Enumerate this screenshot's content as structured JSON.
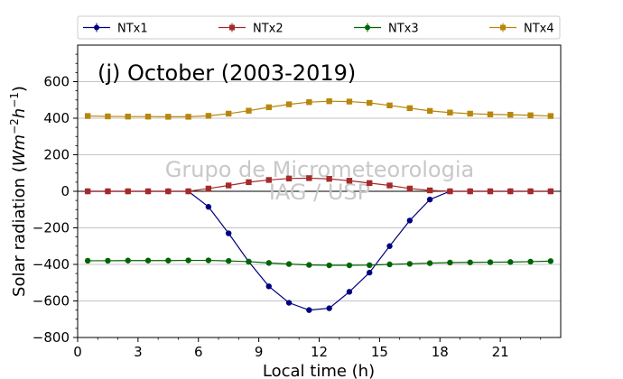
{
  "chart_data": {
    "type": "line",
    "title": "(j) October (2003-2019)",
    "xlabel": "Local time (h)",
    "ylabel_main": "Solar radiation (",
    "ylabel_unit_w": "Wm",
    "ylabel_exp1": "−2",
    "ylabel_unit_h": "h",
    "ylabel_exp2": "−1",
    "ylabel_close": ")",
    "watermark_line1": "Grupo de Micrometeorologia",
    "watermark_line2": "IAG / USP",
    "xlim": [
      0,
      24
    ],
    "ylim": [
      -800,
      800
    ],
    "xticks": [
      0,
      3,
      6,
      9,
      12,
      15,
      18,
      21
    ],
    "yticks": [
      -800,
      -600,
      -400,
      -200,
      0,
      200,
      400,
      600
    ],
    "grid": "horizontal",
    "legend_position": "top",
    "x": [
      0.5,
      1.5,
      2.5,
      3.5,
      4.5,
      5.5,
      6.5,
      7.5,
      8.5,
      9.5,
      10.5,
      11.5,
      12.5,
      13.5,
      14.5,
      15.5,
      16.5,
      17.5,
      18.5,
      19.5,
      20.5,
      21.5,
      22.5,
      23.5
    ],
    "series": [
      {
        "name": "NTx1",
        "color": "#000080",
        "marker": "circle",
        "values": [
          0,
          0,
          0,
          0,
          0,
          0,
          -85,
          -230,
          -385,
          -520,
          -610,
          -650,
          -640,
          -550,
          -445,
          -300,
          -160,
          -45,
          0,
          0,
          0,
          0,
          0,
          0
        ]
      },
      {
        "name": "NTx2",
        "color": "#a52a2a",
        "marker": "square",
        "values": [
          0,
          0,
          0,
          0,
          0,
          0,
          15,
          32,
          50,
          62,
          70,
          72,
          68,
          58,
          45,
          32,
          15,
          5,
          0,
          0,
          0,
          0,
          0,
          0
        ]
      },
      {
        "name": "NTx3",
        "color": "#006400",
        "marker": "circle",
        "values": [
          -380,
          -380,
          -379,
          -379,
          -379,
          -378,
          -378,
          -381,
          -385,
          -392,
          -398,
          -403,
          -405,
          -405,
          -404,
          -400,
          -397,
          -393,
          -390,
          -389,
          -388,
          -387,
          -385,
          -382
        ]
      },
      {
        "name": "NTx4",
        "color": "#b8860b",
        "marker": "square",
        "values": [
          412,
          410,
          409,
          409,
          408,
          408,
          413,
          425,
          441,
          460,
          476,
          488,
          493,
          491,
          484,
          470,
          455,
          440,
          431,
          425,
          421,
          419,
          416,
          412
        ]
      }
    ]
  }
}
